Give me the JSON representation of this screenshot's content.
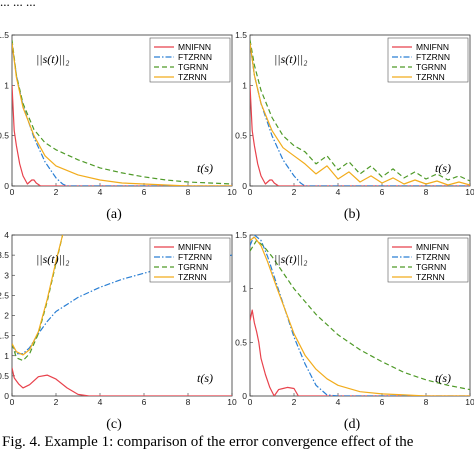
{
  "top_cut_text": "... ... ...",
  "caption": "Fig. 4.    Example 1: comparison of the error convergence effect of the",
  "norm_label": "||s(t)||₂",
  "time_label": "t(s)",
  "colors": {
    "MNIFNN": "#e8424c",
    "FTZRNN": "#2a7fd4",
    "TGRNN": "#4f9a28",
    "TZRNN": "#f2ac1c"
  },
  "legend": [
    "MNIFNN",
    "FTZRNN",
    "TGRNN",
    "TZRNN"
  ],
  "chart_data": [
    {
      "panel": "(a)",
      "type": "line",
      "xlim": [
        0,
        10
      ],
      "ylim": [
        0,
        1.5
      ],
      "xticks": [
        "0",
        "2",
        "4",
        "6",
        "8",
        "10"
      ],
      "yticks": [
        "0",
        "0.5",
        "1",
        "1.5"
      ],
      "series": [
        {
          "name": "MNIFNN",
          "style": "solid",
          "x": [
            0,
            0.1,
            0.2,
            0.35,
            0.5,
            0.7,
            0.9,
            1.0,
            1.1,
            1.3,
            1.5,
            10
          ],
          "y": [
            1.0,
            0.55,
            0.4,
            0.22,
            0.1,
            0.02,
            0.06,
            0.06,
            0.03,
            0.0,
            0.0,
            0.0
          ]
        },
        {
          "name": "FTZRNN",
          "style": "dashdot",
          "x": [
            0,
            0.2,
            0.5,
            1.0,
            1.5,
            2.0,
            2.3,
            2.5,
            3,
            10
          ],
          "y": [
            1.42,
            1.1,
            0.8,
            0.48,
            0.24,
            0.08,
            0.02,
            0.0,
            0.0,
            0.0
          ]
        },
        {
          "name": "TGRNN",
          "style": "dashed",
          "x": [
            0,
            0.2,
            0.5,
            1.0,
            1.5,
            2,
            3,
            4,
            5,
            6,
            7,
            8,
            9,
            10
          ],
          "y": [
            1.45,
            1.1,
            0.82,
            0.56,
            0.43,
            0.36,
            0.26,
            0.18,
            0.13,
            0.09,
            0.06,
            0.04,
            0.03,
            0.02
          ]
        },
        {
          "name": "TZRNN",
          "style": "solid",
          "x": [
            0,
            0.2,
            0.5,
            1.0,
            1.5,
            2,
            3,
            4,
            5,
            6,
            7,
            8,
            10
          ],
          "y": [
            1.42,
            1.08,
            0.78,
            0.5,
            0.3,
            0.2,
            0.11,
            0.06,
            0.03,
            0.02,
            0.01,
            0.0,
            0.0
          ]
        }
      ]
    },
    {
      "panel": "(b)",
      "type": "line",
      "xlim": [
        0,
        10
      ],
      "ylim": [
        0,
        1.5
      ],
      "xticks": [
        "0",
        "2",
        "4",
        "6",
        "8",
        "10"
      ],
      "yticks": [
        "0",
        "0.5",
        "1",
        "1.5"
      ],
      "series": [
        {
          "name": "MNIFNN",
          "style": "solid",
          "x": [
            0,
            0.1,
            0.2,
            0.35,
            0.5,
            0.7,
            0.9,
            1.0,
            1.1,
            1.3,
            1.5,
            10
          ],
          "y": [
            1.0,
            0.55,
            0.4,
            0.22,
            0.1,
            0.02,
            0.06,
            0.06,
            0.03,
            0.0,
            0.0,
            0.0
          ]
        },
        {
          "name": "FTZRNN",
          "style": "dashdot",
          "x": [
            0,
            0.2,
            0.5,
            1.0,
            1.5,
            2.0,
            2.3,
            2.5,
            3,
            10
          ],
          "y": [
            1.42,
            1.1,
            0.82,
            0.5,
            0.26,
            0.1,
            0.03,
            0.0,
            0.0,
            0.0
          ]
        },
        {
          "name": "TGRNN",
          "style": "dashed",
          "x": [
            0,
            0.2,
            0.5,
            1.0,
            1.5,
            2,
            2.5,
            3,
            3.5,
            4,
            4.5,
            5,
            5.5,
            6,
            6.5,
            7,
            7.5,
            8,
            8.5,
            9,
            9.5,
            10
          ],
          "y": [
            1.45,
            1.2,
            0.95,
            0.68,
            0.5,
            0.4,
            0.34,
            0.22,
            0.3,
            0.16,
            0.24,
            0.12,
            0.2,
            0.09,
            0.17,
            0.08,
            0.14,
            0.07,
            0.12,
            0.06,
            0.1,
            0.05
          ]
        },
        {
          "name": "TZRNN",
          "style": "solid",
          "x": [
            0,
            0.2,
            0.5,
            1.0,
            1.5,
            2,
            2.5,
            3,
            3.5,
            4,
            4.5,
            5,
            5.5,
            6,
            6.5,
            7,
            7.5,
            8,
            8.5,
            9,
            9.5,
            10
          ],
          "y": [
            1.42,
            1.1,
            0.82,
            0.55,
            0.38,
            0.3,
            0.22,
            0.12,
            0.2,
            0.07,
            0.14,
            0.04,
            0.1,
            0.03,
            0.08,
            0.02,
            0.06,
            0.02,
            0.05,
            0.01,
            0.04,
            0.01
          ]
        }
      ]
    },
    {
      "panel": "(c)",
      "type": "line",
      "xlim": [
        0,
        10
      ],
      "ylim": [
        0,
        4
      ],
      "xticks": [
        "0",
        "2",
        "4",
        "6",
        "8",
        "10"
      ],
      "yticks": [
        "0",
        "0.5",
        "1",
        "1.5",
        "2",
        "2.5",
        "3",
        "3.5",
        "4"
      ],
      "series": [
        {
          "name": "MNIFNN",
          "style": "solid",
          "x": [
            0,
            0.1,
            0.3,
            0.5,
            0.8,
            1.2,
            1.6,
            2.0,
            2.5,
            3,
            3.5,
            10
          ],
          "y": [
            0.7,
            0.45,
            0.3,
            0.2,
            0.28,
            0.48,
            0.52,
            0.42,
            0.2,
            0.04,
            0.0,
            0.0
          ]
        },
        {
          "name": "FTZRNN",
          "style": "dashdot",
          "x": [
            0,
            0.2,
            0.5,
            0.8,
            1.2,
            1.6,
            2,
            3,
            4,
            5,
            6,
            7,
            8,
            9,
            10
          ],
          "y": [
            1.3,
            1.05,
            1.05,
            1.2,
            1.55,
            1.85,
            2.1,
            2.45,
            2.7,
            2.9,
            3.05,
            3.2,
            3.3,
            3.4,
            3.5
          ]
        },
        {
          "name": "TGRNN",
          "style": "dashed",
          "x": [
            0,
            0.2,
            0.5,
            0.8,
            1.2,
            1.6,
            2,
            2.3
          ],
          "y": [
            1.3,
            0.95,
            0.88,
            1.05,
            1.55,
            2.35,
            3.3,
            4.0
          ]
        },
        {
          "name": "TZRNN",
          "style": "solid",
          "x": [
            0,
            0.2,
            0.5,
            0.8,
            1.2,
            1.6,
            2,
            2.3
          ],
          "y": [
            1.3,
            1.1,
            1.02,
            1.15,
            1.6,
            2.4,
            3.35,
            4.0
          ]
        }
      ]
    },
    {
      "panel": "(d)",
      "type": "line",
      "xlim": [
        0,
        10
      ],
      "ylim": [
        0,
        1.5
      ],
      "xticks": [
        "0",
        "2",
        "4",
        "6",
        "8",
        "10"
      ],
      "yticks": [
        "0",
        "0.5",
        "1",
        "1.5"
      ],
      "series": [
        {
          "name": "MNIFNN",
          "style": "solid",
          "x": [
            0,
            0.1,
            0.2,
            0.3,
            0.4,
            0.5,
            0.7,
            0.9,
            1.1,
            1.3,
            1.5,
            1.7,
            2.0,
            2.2,
            10
          ],
          "y": [
            0.7,
            0.8,
            0.68,
            0.6,
            0.5,
            0.35,
            0.2,
            0.08,
            0.0,
            0.06,
            0.07,
            0.08,
            0.07,
            0.0,
            0.0
          ]
        },
        {
          "name": "FTZRNN",
          "style": "dashdot",
          "x": [
            0,
            0.2,
            0.5,
            0.8,
            1.2,
            1.6,
            2,
            2.5,
            3,
            3.5,
            4,
            10
          ],
          "y": [
            1.4,
            1.5,
            1.45,
            1.3,
            1.05,
            0.8,
            0.55,
            0.3,
            0.1,
            0.01,
            0.0,
            0.0
          ]
        },
        {
          "name": "TGRNN",
          "style": "dashed",
          "x": [
            0,
            0.3,
            0.6,
            1,
            2,
            3,
            4,
            5,
            6,
            7,
            8,
            9,
            10
          ],
          "y": [
            1.35,
            1.45,
            1.4,
            1.3,
            1.0,
            0.76,
            0.57,
            0.43,
            0.32,
            0.22,
            0.15,
            0.1,
            0.06
          ]
        },
        {
          "name": "TZRNN",
          "style": "solid",
          "x": [
            0,
            0.2,
            0.5,
            0.8,
            1.2,
            1.6,
            2,
            2.5,
            3,
            3.5,
            4,
            5,
            6,
            7,
            8,
            10
          ],
          "y": [
            1.45,
            1.48,
            1.4,
            1.25,
            1.02,
            0.8,
            0.58,
            0.38,
            0.25,
            0.16,
            0.1,
            0.04,
            0.02,
            0.01,
            0.0,
            0.0
          ]
        }
      ]
    }
  ],
  "panel_labels": [
    "(a)",
    "(b)",
    "(c)",
    "(d)"
  ]
}
